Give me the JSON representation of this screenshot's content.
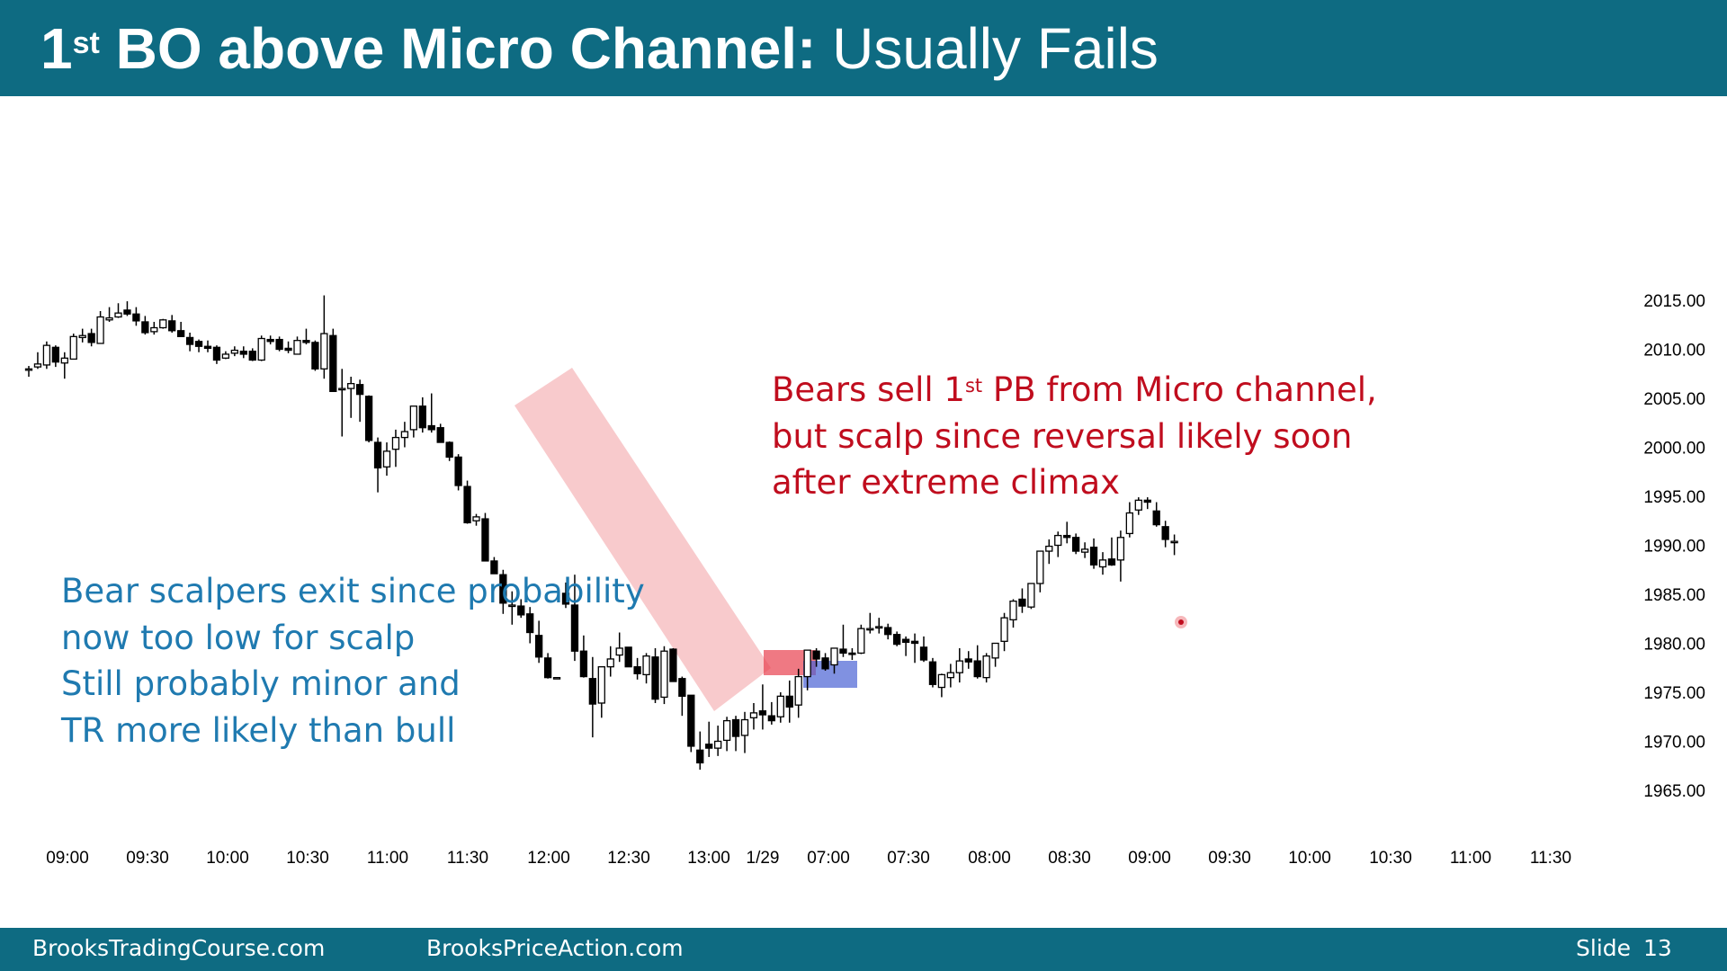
{
  "slide": {
    "title_bold_prefix": "1",
    "title_superscript": "st",
    "title_bold": " BO above Micro Channel:",
    "title_regular": " Usually Fails",
    "footer_left": "BrooksTradingCourse.com",
    "footer_center": "BrooksPriceAction.com",
    "footer_slide_label": "Slide",
    "footer_slide_number": "13"
  },
  "annotations": {
    "red": {
      "line1_prefix": "Bears sell 1",
      "line1_sup": "st",
      "line1_suffix": " PB from Micro channel,",
      "line2": "but scalp since reversal likely soon",
      "line3": "after extreme climax",
      "color": "#c00d1e"
    },
    "blue": {
      "lines": [
        "Bear scalpers exit since probability",
        "now too low for scalp",
        "Still probably minor and",
        "TR more likely than bull"
      ],
      "color": "#1f7ab0"
    }
  },
  "colors": {
    "header_bg": "#0e6b82",
    "bull_candle": "#ffffff",
    "bear_candle": "#000000",
    "micro_channel_highlight": "#f4a6aa",
    "pullback_red_box": "#e8404f",
    "pullback_blue_box": "#4a63d4"
  },
  "chart_data": {
    "type": "candlestick",
    "y_axis": {
      "ticks": [
        "2015.00",
        "2010.00",
        "2005.00",
        "2000.00",
        "1995.00",
        "1990.00",
        "1985.00",
        "1980.00",
        "1975.00",
        "1970.00",
        "1965.00"
      ],
      "range": [
        1963,
        2018
      ]
    },
    "x_axis": {
      "ticks": [
        "09:00",
        "09:30",
        "10:00",
        "10:30",
        "11:00",
        "11:30",
        "12:00",
        "12:30",
        "13:00",
        "1/29",
        "07:00",
        "07:30",
        "08:00",
        "08:30",
        "09:00",
        "09:30",
        "10:00",
        "10:30",
        "11:00",
        "11:30"
      ]
    },
    "bars": [
      [
        2008.0,
        2008.3,
        2007.2,
        2008.0
      ],
      [
        2008.2,
        2009.7,
        2008.0,
        2008.5
      ],
      [
        2008.4,
        2010.8,
        2008.0,
        2010.4
      ],
      [
        2010.2,
        2010.4,
        2008.2,
        2008.7
      ],
      [
        2008.6,
        2009.7,
        2007.0,
        2009.1
      ],
      [
        2009.0,
        2011.6,
        2009.0,
        2011.3
      ],
      [
        2011.2,
        2012.1,
        2010.7,
        2011.4
      ],
      [
        2011.6,
        2012.1,
        2010.3,
        2010.7
      ],
      [
        2010.6,
        2013.9,
        2010.6,
        2013.3
      ],
      [
        2013.0,
        2014.3,
        2012.8,
        2013.2
      ],
      [
        2013.3,
        2014.7,
        2013.2,
        2013.7
      ],
      [
        2014.0,
        2014.9,
        2013.4,
        2013.6
      ],
      [
        2013.6,
        2014.3,
        2012.4,
        2012.9
      ],
      [
        2012.8,
        2013.4,
        2011.5,
        2011.7
      ],
      [
        2011.8,
        2012.8,
        2011.5,
        2012.2
      ],
      [
        2012.2,
        2013.1,
        2012.1,
        2013.0
      ],
      [
        2012.9,
        2013.5,
        2011.7,
        2011.9
      ],
      [
        2011.9,
        2012.8,
        2011.3,
        2011.3
      ],
      [
        2011.2,
        2011.7,
        2009.8,
        2010.5
      ],
      [
        2010.8,
        2011.0,
        2009.7,
        2010.3
      ],
      [
        2010.3,
        2010.9,
        2009.7,
        2010.1
      ],
      [
        2010.2,
        2010.4,
        2008.5,
        2008.9
      ],
      [
        2009.1,
        2009.8,
        2009.0,
        2009.5
      ],
      [
        2009.6,
        2010.3,
        2009.3,
        2009.9
      ],
      [
        2009.8,
        2010.3,
        2009.1,
        2009.5
      ],
      [
        2009.8,
        2010.1,
        2008.8,
        2008.9
      ],
      [
        2008.9,
        2011.4,
        2008.8,
        2011.1
      ],
      [
        2011.0,
        2011.4,
        2010.5,
        2010.8
      ],
      [
        2011.0,
        2011.3,
        2009.8,
        2010.0
      ],
      [
        2010.1,
        2010.8,
        2009.6,
        2009.9
      ],
      [
        2009.5,
        2011.3,
        2009.6,
        2010.9
      ],
      [
        2010.9,
        2012.1,
        2010.5,
        2010.7
      ],
      [
        2010.7,
        2010.9,
        2007.8,
        2008.0
      ],
      [
        2008.0,
        2015.5,
        2007.0,
        2011.6
      ],
      [
        2011.4,
        2012.1,
        2005.7,
        2005.7
      ],
      [
        2006.0,
        2008.0,
        2001.1,
        2006.0
      ],
      [
        2006.0,
        2007.2,
        2003.0,
        2006.5
      ],
      [
        2006.4,
        2006.9,
        2002.6,
        2005.4
      ],
      [
        2005.2,
        2005.3,
        2000.5,
        2000.7
      ],
      [
        2000.5,
        2001.0,
        1995.4,
        1997.9
      ],
      [
        1998.0,
        2000.5,
        1997.1,
        1999.6
      ],
      [
        1999.8,
        2001.8,
        1998.0,
        2001.0
      ],
      [
        2001.0,
        2002.6,
        2000.0,
        2001.6
      ],
      [
        2001.8,
        2003.2,
        2001.0,
        2004.2
      ],
      [
        2004.2,
        2005.1,
        2001.5,
        2002.0
      ],
      [
        2002.2,
        2005.5,
        2001.5,
        2001.8
      ],
      [
        2002.0,
        2002.4,
        2000.5,
        2000.5
      ],
      [
        2000.5,
        2000.6,
        1998.6,
        1999.0
      ],
      [
        1999.0,
        1999.3,
        1995.6,
        1996.1
      ],
      [
        1996.0,
        1996.6,
        1992.2,
        1992.3
      ],
      [
        1992.5,
        1993.2,
        1992.0,
        1992.9
      ],
      [
        1992.7,
        1993.3,
        1988.5,
        1988.4
      ],
      [
        1988.4,
        1988.8,
        1987.1,
        1987.1
      ],
      [
        1987.0,
        1987.5,
        1983.0,
        1984.1
      ],
      [
        1983.9,
        1985.3,
        1981.9,
        1983.9
      ],
      [
        1983.8,
        1984.5,
        1982.6,
        1982.9
      ],
      [
        1983.0,
        1983.7,
        1980.0,
        1981.1
      ],
      [
        1980.8,
        1982.3,
        1978.0,
        1978.6
      ],
      [
        1978.5,
        1979.0,
        1976.4,
        1976.5
      ],
      [
        1976.5,
        1976.5,
        1976.4,
        1976.5
      ],
      [
        1985.1,
        1986.2,
        1983.6,
        1984.0
      ],
      [
        1983.9,
        1987.0,
        1978.2,
        1979.2
      ],
      [
        1979.2,
        1980.8,
        1976.5,
        1976.6
      ],
      [
        1976.4,
        1978.6,
        1970.4,
        1973.8
      ],
      [
        1973.9,
        1976.2,
        1972.4,
        1977.6
      ],
      [
        1977.6,
        1979.7,
        1976.6,
        1978.4
      ],
      [
        1978.8,
        1981.1,
        1978.1,
        1979.5
      ],
      [
        1979.6,
        1979.6,
        1977.8,
        1977.6
      ],
      [
        1977.6,
        1978.5,
        1976.3,
        1976.9
      ],
      [
        1976.8,
        1979.0,
        1975.9,
        1978.7
      ],
      [
        1978.6,
        1979.5,
        1973.9,
        1974.3
      ],
      [
        1974.5,
        1979.7,
        1973.8,
        1979.2
      ],
      [
        1979.4,
        1979.5,
        1976.1,
        1976.1
      ],
      [
        1976.4,
        1976.6,
        1972.6,
        1974.6
      ],
      [
        1974.7,
        1974.7,
        1968.9,
        1969.5
      ],
      [
        1969.1,
        1971.0,
        1967.1,
        1967.8
      ],
      [
        1969.7,
        1972.0,
        1968.4,
        1969.3
      ],
      [
        1969.3,
        1971.6,
        1968.5,
        1970.0
      ],
      [
        1970.1,
        1972.5,
        1969.0,
        1972.1
      ],
      [
        1972.2,
        1972.6,
        1969.0,
        1970.5
      ],
      [
        1970.6,
        1973.0,
        1968.8,
        1972.2
      ],
      [
        1972.4,
        1973.9,
        1971.2,
        1972.9
      ],
      [
        1973.1,
        1975.8,
        1971.2,
        1972.7
      ],
      [
        1972.6,
        1974.0,
        1971.7,
        1972.1
      ],
      [
        1972.5,
        1975.0,
        1971.9,
        1974.6
      ],
      [
        1974.6,
        1976.2,
        1971.9,
        1973.5
      ],
      [
        1973.7,
        1977.4,
        1972.4,
        1976.6
      ],
      [
        1976.6,
        1979.2,
        1975.2,
        1979.3
      ],
      [
        1979.2,
        1979.5,
        1977.6,
        1978.4
      ],
      [
        1978.5,
        1979.0,
        1977.2,
        1977.4
      ],
      [
        1977.8,
        1979.2,
        1976.9,
        1979.5
      ],
      [
        1979.4,
        1981.9,
        1978.6,
        1979.0
      ],
      [
        1979.0,
        1979.5,
        1978.3,
        1978.9
      ],
      [
        1979.0,
        1981.9,
        1978.9,
        1981.5
      ],
      [
        1981.5,
        1983.1,
        1981.0,
        1981.5
      ],
      [
        1981.7,
        1982.6,
        1981.0,
        1981.7
      ],
      [
        1981.6,
        1982.0,
        1980.4,
        1980.9
      ],
      [
        1980.9,
        1981.2,
        1979.7,
        1979.9
      ],
      [
        1980.4,
        1980.7,
        1978.7,
        1980.1
      ],
      [
        1980.2,
        1981.0,
        1978.0,
        1980.0
      ],
      [
        1979.6,
        1980.7,
        1978.1,
        1978.3
      ],
      [
        1978.1,
        1978.5,
        1975.5,
        1975.8
      ],
      [
        1975.5,
        1976.9,
        1974.5,
        1976.8
      ],
      [
        1976.5,
        1977.9,
        1975.5,
        1977.0
      ],
      [
        1977.0,
        1979.5,
        1976.0,
        1978.2
      ],
      [
        1978.4,
        1979.2,
        1977.4,
        1978.1
      ],
      [
        1978.2,
        1979.8,
        1976.4,
        1976.6
      ],
      [
        1976.5,
        1979.0,
        1976.0,
        1978.7
      ],
      [
        1978.5,
        1979.7,
        1977.6,
        1980.0
      ],
      [
        1980.2,
        1983.1,
        1979.2,
        1982.6
      ],
      [
        1982.4,
        1984.5,
        1981.6,
        1984.3
      ],
      [
        1984.5,
        1985.6,
        1983.1,
        1983.8
      ],
      [
        1983.7,
        1986.1,
        1983.5,
        1986.1
      ],
      [
        1986.1,
        1989.3,
        1985.2,
        1989.4
      ],
      [
        1989.4,
        1990.6,
        1988.1,
        1989.9
      ],
      [
        1990.0,
        1991.4,
        1988.8,
        1991.0
      ],
      [
        1991.0,
        1992.4,
        1990.2,
        1990.8
      ],
      [
        1990.8,
        1991.2,
        1989.1,
        1989.4
      ],
      [
        1989.3,
        1990.3,
        1988.7,
        1989.6
      ],
      [
        1989.8,
        1990.7,
        1987.6,
        1988.0
      ],
      [
        1987.8,
        1989.3,
        1987.0,
        1988.5
      ],
      [
        1988.6,
        1990.8,
        1987.9,
        1988.0
      ],
      [
        1988.5,
        1991.5,
        1986.3,
        1990.8
      ],
      [
        1991.2,
        1994.4,
        1990.8,
        1993.3
      ],
      [
        1993.6,
        1994.9,
        1993.1,
        1994.6
      ],
      [
        1994.6,
        1994.9,
        1993.7,
        1994.4
      ],
      [
        1993.5,
        1994.4,
        1991.9,
        1992.1
      ],
      [
        1991.9,
        1992.5,
        1989.8,
        1990.6
      ],
      [
        1990.4,
        1991.1,
        1989.0,
        1990.4
      ]
    ]
  }
}
